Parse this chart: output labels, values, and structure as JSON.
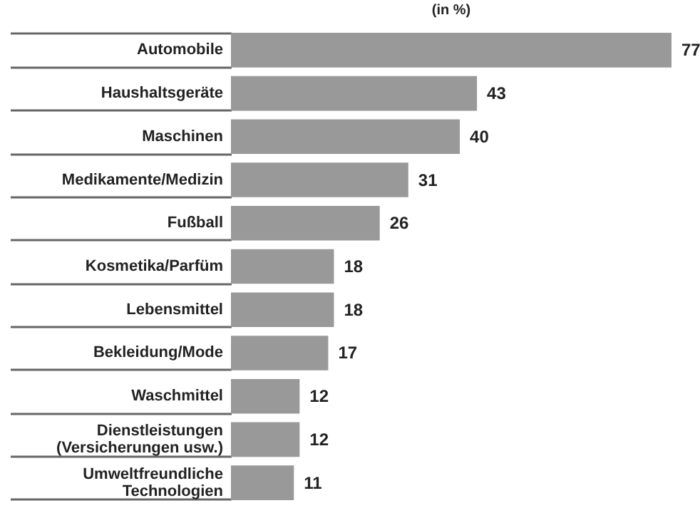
{
  "chart_data": {
    "type": "bar",
    "orientation": "horizontal",
    "subtitle": "(in %)",
    "categories": [
      "Automobile",
      "Haushaltsgeräte",
      "Maschinen",
      "Medikamente/Medizin",
      "Fußball",
      "Kosmetika/Parfüm",
      "Lebensmittel",
      "Bekleidung/Mode",
      "Waschmittel",
      "Dienstleistungen\n(Versicherungen usw.)",
      "Umweltfreundliche\nTechnologien"
    ],
    "values": [
      77,
      43,
      40,
      31,
      26,
      18,
      18,
      17,
      12,
      12,
      11
    ],
    "color": "#999999",
    "data_labels": true
  }
}
